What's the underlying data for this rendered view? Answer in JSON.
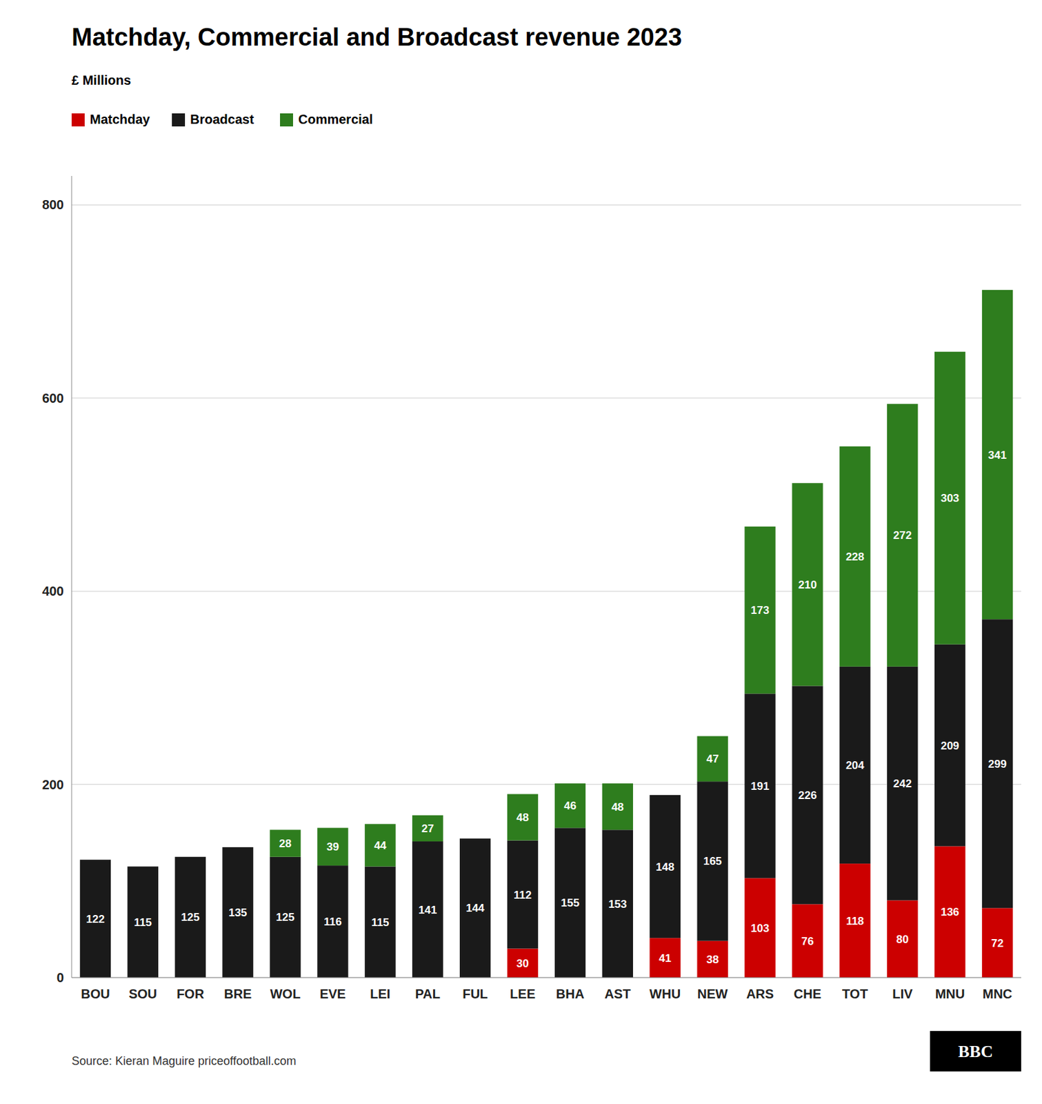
{
  "chart_data": {
    "type": "bar",
    "stacked": true,
    "title": "Matchday, Commercial and Broadcast revenue 2023",
    "subtitle": "£ Millions",
    "annotations": [
      "Source: Kieran Maguire priceoffootball.com",
      "BBC"
    ],
    "categories": [
      "BOU",
      "SOU",
      "FOR",
      "BRE",
      "WOL",
      "EVE",
      "LEI",
      "PAL",
      "FUL",
      "LEE",
      "BHA",
      "AST",
      "WHU",
      "NEW",
      "ARS",
      "CHE",
      "TOT",
      "LIV",
      "MNU",
      "MNC"
    ],
    "series": [
      {
        "name": "Matchday",
        "color": "#cc0000",
        "values": [
          0,
          0,
          0,
          0,
          0,
          0,
          0,
          0,
          0,
          30,
          0,
          0,
          41,
          38,
          103,
          76,
          118,
          80,
          136,
          72
        ]
      },
      {
        "name": "Broadcast",
        "color": "#1a1a1a",
        "values": [
          122,
          115,
          125,
          135,
          125,
          116,
          115,
          141,
          144,
          112,
          155,
          153,
          148,
          165,
          191,
          226,
          204,
          242,
          209,
          299
        ]
      },
      {
        "name": "Commercial",
        "color": "#2e7d1e",
        "values": [
          0,
          0,
          0,
          0,
          28,
          39,
          44,
          27,
          0,
          48,
          46,
          48,
          0,
          47,
          173,
          210,
          228,
          272,
          303,
          341
        ]
      }
    ],
    "ylim": [
      0,
      830
    ],
    "yticks": [
      0,
      200,
      400,
      600,
      800
    ],
    "grid": true,
    "legend": "top-left",
    "data_labels": true
  }
}
